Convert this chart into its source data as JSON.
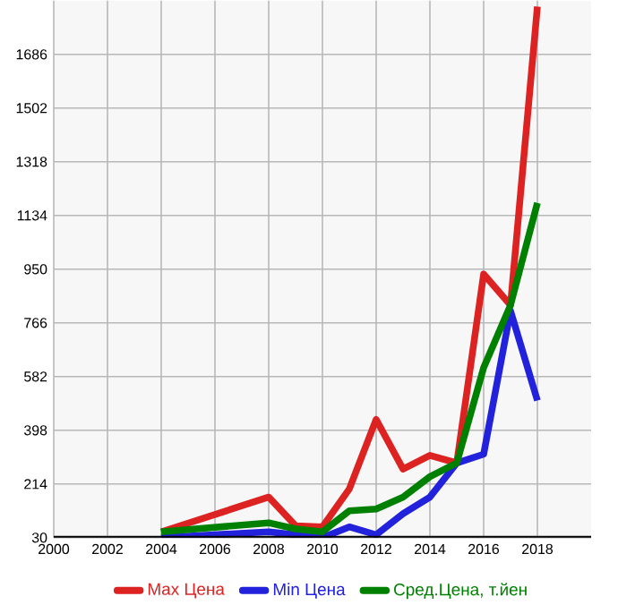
{
  "chart_data": {
    "type": "line",
    "x": [
      2004,
      2008,
      2009,
      2010,
      2011,
      2012,
      2013,
      2014,
      2015,
      2016,
      2017,
      2018
    ],
    "series": [
      {
        "name": "Max Цена",
        "color": "#dd2222",
        "values": [
          50,
          169,
          71,
          67,
          197,
          435,
          265,
          312,
          286,
          933,
          827,
          1850
        ]
      },
      {
        "name": "Min Цена",
        "color": "#2222dd",
        "values": [
          30,
          50,
          40,
          30,
          67,
          40,
          112,
          169,
          286,
          316,
          807,
          500
        ]
      },
      {
        "name": "Сред.Цена, т.йен",
        "color": "#008000",
        "values": [
          50,
          81,
          60,
          50,
          122,
          128,
          169,
          239,
          286,
          613,
          827,
          1177
        ]
      }
    ],
    "xlim": [
      2000,
      2020
    ],
    "xticks": [
      2000,
      2002,
      2004,
      2006,
      2008,
      2010,
      2012,
      2014,
      2016,
      2018
    ],
    "ylim": [
      30,
      1870
    ],
    "yticks": [
      30,
      214,
      398,
      582,
      766,
      950,
      1134,
      1318,
      1502,
      1686
    ],
    "grid": true,
    "legend": "bottom",
    "marker": "none",
    "line_style": "solid"
  }
}
